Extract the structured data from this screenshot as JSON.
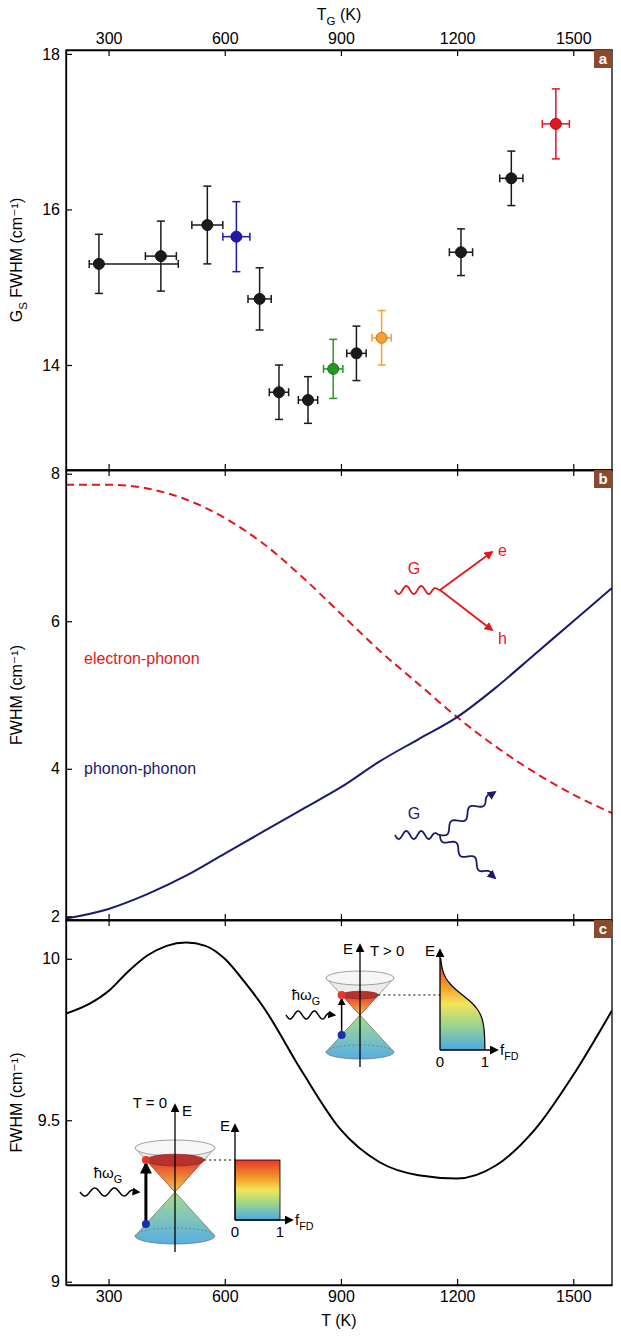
{
  "chart_data": [
    {
      "type": "scatter",
      "title": "a",
      "xlabel": [
        "T",
        "G",
        " (K)"
      ],
      "ylabel": [
        "G",
        "S",
        " FWHM (cm⁻¹)"
      ],
      "x": [
        275,
        435,
        555,
        630,
        690,
        740,
        815,
        880,
        940,
        1005,
        1210,
        1340,
        1455
      ],
      "values": [
        15.3,
        15.4,
        15.8,
        15.65,
        14.85,
        13.65,
        13.55,
        13.95,
        14.15,
        14.35,
        15.45,
        16.4,
        17.1
      ],
      "xerr": [
        [
          25,
          205
        ],
        [
          40,
          40
        ],
        [
          40,
          40
        ],
        [
          35,
          35
        ],
        [
          30,
          30
        ],
        [
          25,
          25
        ],
        [
          25,
          25
        ],
        [
          25,
          25
        ],
        [
          25,
          25
        ],
        [
          25,
          25
        ],
        [
          30,
          30
        ],
        [
          30,
          30
        ],
        [
          35,
          35
        ]
      ],
      "yerr": [
        0.38,
        0.45,
        0.5,
        0.45,
        0.4,
        0.35,
        0.3,
        0.38,
        0.35,
        0.35,
        0.3,
        0.35,
        0.45
      ],
      "colors": [
        "#1a1a1a",
        "#1a1a1a",
        "#1a1a1a",
        "#1c1ca8",
        "#1a1a1a",
        "#1a1a1a",
        "#1a1a1a",
        "#1f9a1f",
        "#1a1a1a",
        "#f7a12c",
        "#1a1a1a",
        "#1a1a1a",
        "#e5161d"
      ],
      "marker": "circle",
      "xlim": [
        190,
        1600
      ],
      "xticks": [
        300,
        600,
        900,
        1200,
        1500
      ],
      "ylim": [
        12.65,
        18.05
      ],
      "yticks": [
        14,
        16,
        18
      ]
    },
    {
      "type": "line",
      "title": "b",
      "ylabel": "FWHM (cm⁻¹)",
      "x": [
        190,
        300,
        400,
        500,
        600,
        700,
        800,
        900,
        1000,
        1100,
        1200,
        1300,
        1400,
        1500,
        1600
      ],
      "series": [
        {
          "name": "electron-phonon",
          "color": "#e5161d",
          "line_style": "dashed",
          "values": [
            7.85,
            7.85,
            7.8,
            7.65,
            7.4,
            7.05,
            6.6,
            6.1,
            5.6,
            5.15,
            4.7,
            4.3,
            3.95,
            3.65,
            3.4
          ]
        },
        {
          "name": "phonon-phonon",
          "color": "#1a1a6e",
          "line_style": "solid",
          "values": [
            1.97,
            2.1,
            2.3,
            2.55,
            2.85,
            3.15,
            3.45,
            3.75,
            4.1,
            4.4,
            4.7,
            5.1,
            5.55,
            6.0,
            6.45
          ]
        }
      ],
      "annotations": [
        "G",
        "e",
        "h",
        "G"
      ],
      "tick_labels": "y",
      "xlim": [
        190,
        1600
      ],
      "xticks": [
        300,
        600,
        900,
        1200,
        1500
      ],
      "ylim": [
        1.95,
        8.05
      ],
      "yticks": [
        2,
        4,
        6,
        8
      ]
    },
    {
      "type": "line",
      "title": "c",
      "xlabel": "T (K)",
      "ylabel": "FWHM (cm⁻¹)",
      "x": [
        190,
        250,
        300,
        350,
        400,
        450,
        500,
        550,
        600,
        650,
        700,
        800,
        900,
        1000,
        1100,
        1200,
        1300,
        1400,
        1500,
        1600
      ],
      "series": [
        {
          "color": "#000000",
          "line_style": "solid",
          "values": [
            9.83,
            9.86,
            9.9,
            9.96,
            10.01,
            10.04,
            10.05,
            10.04,
            10.0,
            9.93,
            9.85,
            9.65,
            9.47,
            9.37,
            9.33,
            9.32,
            9.36,
            9.47,
            9.64,
            9.84
          ]
        }
      ],
      "insets": [
        {
          "title": "T = 0",
          "energy": "E",
          "photon": [
            "ħω",
            "G"
          ],
          "dist_energy": "E",
          "dist_label": [
            "f",
            "FD"
          ],
          "dist_ticks": [
            0,
            1
          ]
        },
        {
          "title": "T > 0",
          "energy": "E",
          "photon": [
            "ħω",
            "G"
          ],
          "dist_energy": "E",
          "dist_label": [
            "f",
            "FD"
          ],
          "dist_ticks": [
            0,
            1
          ]
        }
      ],
      "xlim": [
        190,
        1600
      ],
      "xticks": [
        300,
        600,
        900,
        1200,
        1500
      ],
      "ylim": [
        8.99,
        10.12
      ],
      "yticks": [
        9,
        9.5,
        10
      ]
    }
  ]
}
